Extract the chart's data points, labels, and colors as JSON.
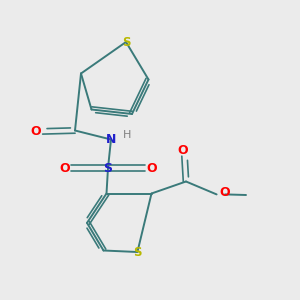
{
  "background_color": "#ebebeb",
  "bond_color": "#3a7a7a",
  "S_color": "#b8b800",
  "O_color": "#ff0000",
  "N_color": "#2020cc",
  "H_color": "#808080",
  "S_sulfonyl_color": "#2020cc",
  "figsize": [
    3.0,
    3.0
  ],
  "dpi": 100,
  "xlim": [
    0,
    10
  ],
  "ylim": [
    0,
    10
  ]
}
